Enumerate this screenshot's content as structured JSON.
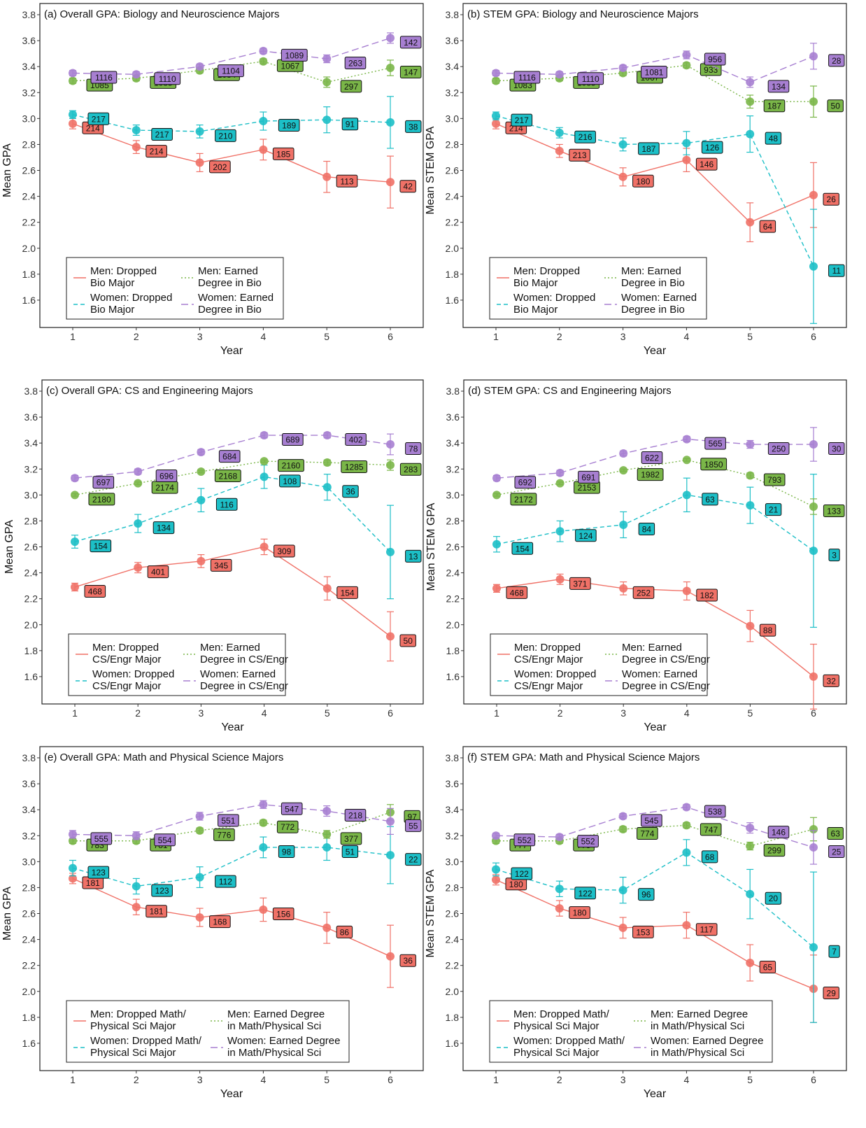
{
  "chart_data": [
    {
      "type": "line",
      "title": "(a) Overall GPA: Biology and Neuroscience Majors",
      "xlabel": "Year",
      "ylabel": "Mean GPA",
      "x": [
        1,
        2,
        3,
        4,
        5,
        6
      ],
      "ylim": [
        1.4,
        3.8
      ],
      "yticks": [
        "1.6",
        "1.8",
        "2.0",
        "2.2",
        "2.4",
        "2.6",
        "2.8",
        "3.0",
        "3.2",
        "3.4",
        "3.6",
        "3.8"
      ],
      "legend_position": "bottom-left",
      "series": [
        {
          "name": "Men: Dropped Bio Major",
          "legend_lines": [
            "Men: Dropped",
            "Bio Major"
          ],
          "color": "#f07167",
          "dash": "solid",
          "values": [
            2.96,
            2.78,
            2.66,
            2.76,
            2.55,
            2.51
          ],
          "err": [
            0.04,
            0.05,
            0.07,
            0.08,
            0.12,
            0.2
          ],
          "labels": [
            "214",
            "214",
            "202",
            "185",
            "113",
            "42"
          ]
        },
        {
          "name": "Women: Dropped Bio Major",
          "legend_lines": [
            "Women: Dropped",
            "Bio Major"
          ],
          "color": "#1cbfc7",
          "dash": "dashed",
          "values": [
            3.03,
            2.91,
            2.9,
            2.98,
            2.99,
            2.97
          ],
          "err": [
            0.03,
            0.04,
            0.05,
            0.07,
            0.1,
            0.2
          ],
          "labels": [
            "217",
            "217",
            "210",
            "189",
            "91",
            "38"
          ]
        },
        {
          "name": "Men: Earned Degree in Bio",
          "legend_lines": [
            "Men: Earned",
            "Degree in Bio"
          ],
          "color": "#7ab648",
          "dash": "dotted",
          "values": [
            3.29,
            3.31,
            3.37,
            3.44,
            3.28,
            3.39
          ],
          "err": [
            0.02,
            0.02,
            0.02,
            0.02,
            0.04,
            0.06
          ],
          "labels": [
            "1085",
            "1085",
            "1084",
            "1067",
            "297",
            "147"
          ]
        },
        {
          "name": "Women: Earned Degree in Bio",
          "legend_lines": [
            "Women: Earned",
            "Degree in Bio"
          ],
          "color": "#a77fd1",
          "dash": "longdash",
          "values": [
            3.35,
            3.34,
            3.4,
            3.52,
            3.46,
            3.62
          ],
          "err": [
            0.02,
            0.02,
            0.02,
            0.02,
            0.03,
            0.04
          ],
          "labels": [
            "1116",
            "1110",
            "1104",
            "1089",
            "263",
            "142"
          ]
        }
      ]
    },
    {
      "type": "line",
      "title": "(b) STEM GPA: Biology and Neuroscience Majors",
      "xlabel": "Year",
      "ylabel": "Mean STEM GPA",
      "x": [
        1,
        2,
        3,
        4,
        5,
        6
      ],
      "ylim": [
        1.4,
        3.8
      ],
      "yticks": [
        "1.6",
        "1.8",
        "2.0",
        "2.2",
        "2.4",
        "2.6",
        "2.8",
        "3.0",
        "3.2",
        "3.4",
        "3.6",
        "3.8"
      ],
      "legend_position": "bottom-left",
      "series": [
        {
          "name": "Men: Dropped Bio Major",
          "legend_lines": [
            "Men: Dropped",
            "Bio Major"
          ],
          "color": "#f07167",
          "dash": "solid",
          "values": [
            2.96,
            2.75,
            2.55,
            2.68,
            2.2,
            2.41
          ],
          "err": [
            0.04,
            0.05,
            0.07,
            0.09,
            0.15,
            0.25
          ],
          "labels": [
            "214",
            "213",
            "180",
            "146",
            "64",
            "26"
          ]
        },
        {
          "name": "Women: Dropped Bio Major",
          "legend_lines": [
            "Women: Dropped",
            "Bio Major"
          ],
          "color": "#1cbfc7",
          "dash": "dashed",
          "values": [
            3.02,
            2.89,
            2.8,
            2.81,
            2.88,
            1.86
          ],
          "err": [
            0.03,
            0.04,
            0.05,
            0.09,
            0.14,
            0.44
          ],
          "labels": [
            "217",
            "216",
            "187",
            "126",
            "48",
            "11"
          ]
        },
        {
          "name": "Men: Earned Degree in Bio",
          "legend_lines": [
            "Men: Earned",
            "Degree in Bio"
          ],
          "color": "#7ab648",
          "dash": "dotted",
          "values": [
            3.29,
            3.31,
            3.35,
            3.41,
            3.13,
            3.13
          ],
          "err": [
            0.02,
            0.02,
            0.02,
            0.02,
            0.05,
            0.12
          ],
          "labels": [
            "1083",
            "1085",
            "1067",
            "933",
            "187",
            "50"
          ]
        },
        {
          "name": "Women: Earned Degree in Bio",
          "legend_lines": [
            "Women: Earned",
            "Degree in Bio"
          ],
          "color": "#a77fd1",
          "dash": "longdash",
          "values": [
            3.35,
            3.34,
            3.39,
            3.49,
            3.28,
            3.48
          ],
          "err": [
            0.02,
            0.02,
            0.02,
            0.03,
            0.04,
            0.1
          ],
          "labels": [
            "1116",
            "1110",
            "1081",
            "956",
            "134",
            "28"
          ]
        }
      ]
    },
    {
      "type": "line",
      "title": "(c) Overall GPA: CS and Engineering Majors",
      "xlabel": "Year",
      "ylabel": "Mean GPA",
      "x": [
        1,
        2,
        3,
        4,
        5,
        6
      ],
      "ylim": [
        1.4,
        3.8
      ],
      "yticks": [
        "1.6",
        "1.8",
        "2.0",
        "2.2",
        "2.4",
        "2.6",
        "2.8",
        "3.0",
        "3.2",
        "3.4",
        "3.6",
        "3.8"
      ],
      "legend_position": "bottom-left",
      "series": [
        {
          "name": "Men: Dropped CS/Engr Major",
          "legend_lines": [
            "Men: Dropped",
            "CS/Engr Major"
          ],
          "color": "#f07167",
          "dash": "solid",
          "values": [
            2.29,
            2.44,
            2.49,
            2.6,
            2.28,
            1.91
          ],
          "err": [
            0.03,
            0.04,
            0.05,
            0.06,
            0.09,
            0.19
          ],
          "labels": [
            "468",
            "401",
            "345",
            "309",
            "154",
            "50"
          ]
        },
        {
          "name": "Women: Dropped CS/Engr Major",
          "legend_lines": [
            "Women: Dropped",
            "CS/Engr Major"
          ],
          "color": "#1cbfc7",
          "dash": "dashed",
          "values": [
            2.64,
            2.78,
            2.96,
            3.14,
            3.06,
            2.56
          ],
          "err": [
            0.05,
            0.07,
            0.09,
            0.09,
            0.1,
            0.36
          ],
          "labels": [
            "154",
            "134",
            "116",
            "108",
            "36",
            "13"
          ]
        },
        {
          "name": "Men: Earned Degree in CS/Engr",
          "legend_lines": [
            "Men: Earned",
            "Degree in CS/Engr"
          ],
          "color": "#7ab648",
          "dash": "dotted",
          "values": [
            3.0,
            3.09,
            3.18,
            3.26,
            3.25,
            3.23
          ],
          "err": [
            0.01,
            0.01,
            0.01,
            0.01,
            0.02,
            0.04
          ],
          "labels": [
            "2180",
            "2174",
            "2168",
            "2160",
            "1285",
            "283"
          ]
        },
        {
          "name": "Women: Earned Degree in CS/Engr",
          "legend_lines": [
            "Women: Earned",
            "Degree in CS/Engr"
          ],
          "color": "#a77fd1",
          "dash": "longdash",
          "values": [
            3.13,
            3.18,
            3.33,
            3.46,
            3.46,
            3.39
          ],
          "err": [
            0.02,
            0.02,
            0.02,
            0.02,
            0.02,
            0.08
          ],
          "labels": [
            "697",
            "696",
            "684",
            "689",
            "402",
            "78"
          ]
        }
      ]
    },
    {
      "type": "line",
      "title": "(d) STEM GPA: CS and Engineering Majors",
      "xlabel": "Year",
      "ylabel": "Mean STEM GPA",
      "x": [
        1,
        2,
        3,
        4,
        5,
        6
      ],
      "ylim": [
        1.4,
        3.8
      ],
      "yticks": [
        "1.6",
        "1.8",
        "2.0",
        "2.2",
        "2.4",
        "2.6",
        "2.8",
        "3.0",
        "3.2",
        "3.4",
        "3.6",
        "3.8"
      ],
      "legend_position": "bottom-left",
      "series": [
        {
          "name": "Men: Dropped CS/Engr Major",
          "legend_lines": [
            "Men: Dropped",
            "CS/Engr Major"
          ],
          "color": "#f07167",
          "dash": "solid",
          "values": [
            2.28,
            2.35,
            2.28,
            2.26,
            1.99,
            1.6
          ],
          "err": [
            0.03,
            0.04,
            0.05,
            0.07,
            0.12,
            0.25
          ],
          "labels": [
            "468",
            "371",
            "252",
            "182",
            "88",
            "32"
          ]
        },
        {
          "name": "Women: Dropped CS/Engr Major",
          "legend_lines": [
            "Women: Dropped",
            "CS/Engr Major"
          ],
          "color": "#1cbfc7",
          "dash": "dashed",
          "values": [
            2.62,
            2.72,
            2.77,
            3.0,
            2.92,
            2.57
          ],
          "err": [
            0.06,
            0.08,
            0.1,
            0.13,
            0.14,
            0.59
          ],
          "labels": [
            "154",
            "124",
            "84",
            "63",
            "21",
            "3"
          ]
        },
        {
          "name": "Men: Earned Degree in CS/Engr",
          "legend_lines": [
            "Men: Earned",
            "Degree in CS/Engr"
          ],
          "color": "#7ab648",
          "dash": "dotted",
          "values": [
            3.0,
            3.09,
            3.19,
            3.27,
            3.15,
            2.91
          ],
          "err": [
            0.01,
            0.01,
            0.01,
            0.01,
            0.02,
            0.06
          ],
          "labels": [
            "2172",
            "2153",
            "1982",
            "1850",
            "793",
            "133"
          ]
        },
        {
          "name": "Women: Earned Degree in CS/Engr",
          "legend_lines": [
            "Women: Earned",
            "Degree in CS/Engr"
          ],
          "color": "#a77fd1",
          "dash": "longdash",
          "values": [
            3.13,
            3.17,
            3.32,
            3.43,
            3.39,
            3.39
          ],
          "err": [
            0.02,
            0.02,
            0.02,
            0.02,
            0.03,
            0.13
          ],
          "labels": [
            "692",
            "691",
            "622",
            "565",
            "250",
            "30"
          ]
        }
      ]
    },
    {
      "type": "line",
      "title": "(e) Overall GPA: Math and Physical Science Majors",
      "xlabel": "Year",
      "ylabel": "Mean GPA",
      "x": [
        1,
        2,
        3,
        4,
        5,
        6
      ],
      "ylim": [
        1.4,
        3.8
      ],
      "yticks": [
        "1.6",
        "1.8",
        "2.0",
        "2.2",
        "2.4",
        "2.6",
        "2.8",
        "3.0",
        "3.2",
        "3.4",
        "3.6",
        "3.8"
      ],
      "legend_position": "bottom-left",
      "series": [
        {
          "name": "Men: Dropped Math/Physical Sci Major",
          "legend_lines": [
            "Men: Dropped Math/",
            "Physical Sci Major"
          ],
          "color": "#f07167",
          "dash": "solid",
          "values": [
            2.87,
            2.65,
            2.57,
            2.63,
            2.49,
            2.27
          ],
          "err": [
            0.04,
            0.06,
            0.07,
            0.09,
            0.12,
            0.24
          ],
          "labels": [
            "181",
            "181",
            "168",
            "156",
            "86",
            "36"
          ]
        },
        {
          "name": "Women: Dropped Math/Physical Sci Major",
          "legend_lines": [
            "Women: Dropped Math/",
            "Physical Sci Major"
          ],
          "color": "#1cbfc7",
          "dash": "dashed",
          "values": [
            2.95,
            2.81,
            2.88,
            3.11,
            3.11,
            3.05
          ],
          "err": [
            0.06,
            0.06,
            0.08,
            0.08,
            0.1,
            0.22
          ],
          "labels": [
            "123",
            "123",
            "112",
            "98",
            "51",
            "22"
          ]
        },
        {
          "name": "Men: Earned Degree in Math/Physical Sci",
          "legend_lines": [
            "Men: Earned Degree",
            "in Math/Physical Sci"
          ],
          "color": "#7ab648",
          "dash": "dotted",
          "values": [
            3.16,
            3.16,
            3.24,
            3.3,
            3.21,
            3.38
          ],
          "err": [
            0.02,
            0.02,
            0.02,
            0.02,
            0.03,
            0.06
          ],
          "labels": [
            "783",
            "781",
            "776",
            "772",
            "377",
            "97"
          ]
        },
        {
          "name": "Women: Earned Degree in Math/Physical Sci",
          "legend_lines": [
            "Women: Earned Degree",
            "in Math/Physical Sci"
          ],
          "color": "#a77fd1",
          "dash": "longdash",
          "values": [
            3.21,
            3.2,
            3.35,
            3.44,
            3.39,
            3.31
          ],
          "err": [
            0.03,
            0.03,
            0.03,
            0.03,
            0.04,
            0.1
          ],
          "labels": [
            "555",
            "554",
            "551",
            "547",
            "218",
            "55"
          ]
        }
      ]
    },
    {
      "type": "line",
      "title": "(f) STEM GPA: Math and Physical Science Majors",
      "xlabel": "Year",
      "ylabel": "Mean STEM GPA",
      "x": [
        1,
        2,
        3,
        4,
        5,
        6
      ],
      "ylim": [
        1.4,
        3.8
      ],
      "yticks": [
        "1.6",
        "1.8",
        "2.0",
        "2.2",
        "2.4",
        "2.6",
        "2.8",
        "3.0",
        "3.2",
        "3.4",
        "3.6",
        "3.8"
      ],
      "legend_position": "bottom-left",
      "series": [
        {
          "name": "Men: Dropped Math/Physical Sci Major",
          "legend_lines": [
            "Men: Dropped Math/",
            "Physical Sci Major"
          ],
          "color": "#f07167",
          "dash": "solid",
          "values": [
            2.86,
            2.64,
            2.49,
            2.51,
            2.22,
            2.02
          ],
          "err": [
            0.04,
            0.06,
            0.08,
            0.1,
            0.14,
            0.26
          ],
          "labels": [
            "180",
            "180",
            "153",
            "117",
            "65",
            "29"
          ]
        },
        {
          "name": "Women: Dropped Math/Physical Sci Major",
          "legend_lines": [
            "Women: Dropped Math/",
            "Physical Sci Major"
          ],
          "color": "#1cbfc7",
          "dash": "dashed",
          "values": [
            2.94,
            2.79,
            2.78,
            3.07,
            2.75,
            2.34
          ],
          "err": [
            0.05,
            0.06,
            0.1,
            0.1,
            0.19,
            0.58
          ],
          "labels": [
            "122",
            "122",
            "96",
            "68",
            "20",
            "7"
          ]
        },
        {
          "name": "Men: Earned Degree in Math/Physical Sci",
          "legend_lines": [
            "Men: Earned Degree",
            "in Math/Physical Sci"
          ],
          "color": "#7ab648",
          "dash": "dotted",
          "values": [
            3.16,
            3.16,
            3.25,
            3.28,
            3.12,
            3.25
          ],
          "err": [
            0.02,
            0.02,
            0.02,
            0.02,
            0.03,
            0.09
          ],
          "labels": [
            "777",
            "779",
            "774",
            "747",
            "299",
            "63"
          ]
        },
        {
          "name": "Women: Earned Degree in Math/Physical Sci",
          "legend_lines": [
            "Women: Earned Degree",
            "in Math/Physical Sci"
          ],
          "color": "#a77fd1",
          "dash": "longdash",
          "values": [
            3.2,
            3.19,
            3.35,
            3.42,
            3.26,
            3.11
          ],
          "err": [
            0.02,
            0.02,
            0.02,
            0.02,
            0.04,
            0.13
          ],
          "labels": [
            "552",
            "552",
            "545",
            "538",
            "146",
            "25"
          ]
        }
      ]
    }
  ]
}
